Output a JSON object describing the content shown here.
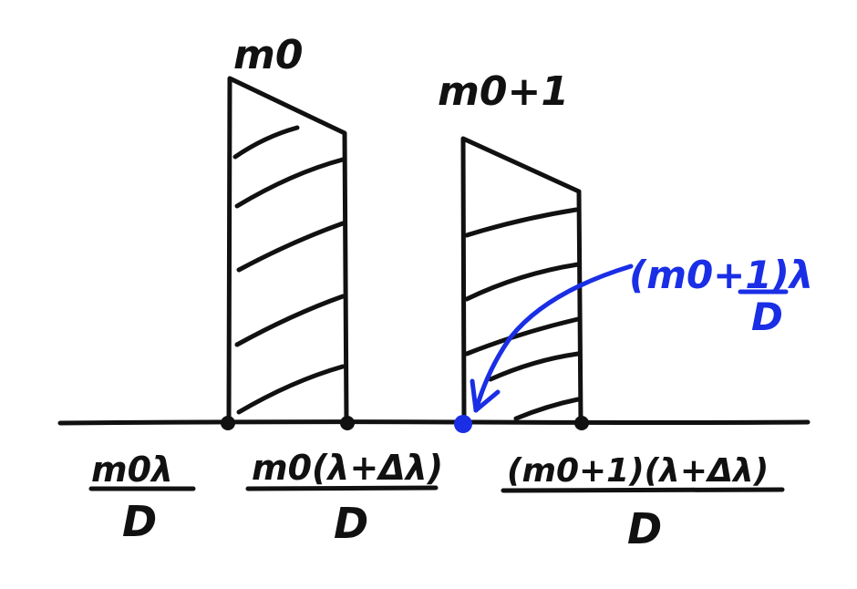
{
  "labels": {
    "bar1_order": "m0",
    "bar2_order": "m0+1",
    "annotation": {
      "numerator": "(m0+1)λ",
      "denominator": "D"
    },
    "axis": [
      {
        "numerator": "m0λ",
        "denominator": "D"
      },
      {
        "numerator": "m0(λ+Δλ)",
        "denominator": "D"
      },
      {
        "numerator": "(m0+1)(λ+Δλ)",
        "denominator": "D"
      }
    ]
  },
  "colors": {
    "ink": "#111111",
    "highlight": "#1a2ee6",
    "background": "#ffffff"
  }
}
